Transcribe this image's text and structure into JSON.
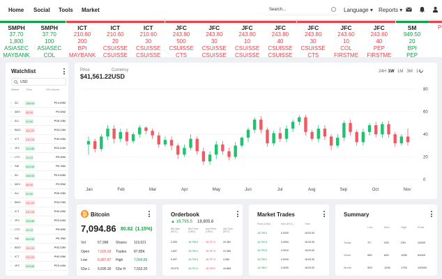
{
  "nav": {
    "links": [
      "Home",
      "Social",
      "Tools",
      "Market"
    ],
    "search": "Search...",
    "language": "Language",
    "reports": "Reports"
  },
  "ticker": [
    {
      "sym": "SMPH",
      "price": "37.70",
      "vol": "1,800",
      "broker": "ASIASEC",
      "name": "MAYBANK",
      "color": "#14a04a"
    },
    {
      "sym": "SMPH",
      "price": "37.70",
      "vol": "100",
      "broker": "ASIASEC",
      "name": "COL",
      "color": "#14a04a"
    },
    {
      "sym": "ICT",
      "price": "210.60",
      "vol": "200",
      "broker": "BPI",
      "name": "MAYBANK",
      "color": "#e8424a"
    },
    {
      "sym": "ICT",
      "price": "210.60",
      "vol": "20",
      "broker": "CSUISSE",
      "name": "CSUISSE",
      "color": "#e8424a"
    },
    {
      "sym": "ICT",
      "price": "210.60",
      "vol": "30",
      "broker": "CSUISSE",
      "name": "CSUISSE",
      "color": "#e8424a"
    },
    {
      "sym": "JFC",
      "price": "243.80",
      "vol": "500",
      "broker": "CSUISSE",
      "name": "CTS",
      "color": "#e8424a"
    },
    {
      "sym": "JFC",
      "price": "243.80",
      "vol": "30",
      "broker": "CSUISSE",
      "name": "CSUISSE",
      "color": "#e8424a"
    },
    {
      "sym": "JFC",
      "price": "243.80",
      "vol": "10",
      "broker": "CSUISSE",
      "name": "CSUISSE",
      "color": "#e8424a"
    },
    {
      "sym": "JFC",
      "price": "243.80",
      "vol": "40",
      "broker": "CSUISSE",
      "name": "CSUISSE",
      "color": "#e8424a"
    },
    {
      "sym": "JFC",
      "price": "243.80",
      "vol": "30",
      "broker": "CSUISSE",
      "name": "CTS",
      "color": "#e8424a"
    },
    {
      "sym": "JFC",
      "price": "243.60",
      "vol": "10",
      "broker": "COL",
      "name": "FIRSTME",
      "color": "#e8424a"
    },
    {
      "sym": "JFC",
      "price": "243.60",
      "vol": "40",
      "broker": "PEP",
      "name": "FIRSTME",
      "color": "#e8424a"
    },
    {
      "sym": "SM",
      "price": "949.50",
      "vol": "20",
      "broker": "BPI",
      "name": "PEP",
      "color": "#14a04a"
    },
    {
      "sym": "",
      "price": "",
      "vol": "",
      "broker": "",
      "name": "PHLS",
      "color": "#e8424a"
    }
  ],
  "watchlist": {
    "title": "Watchlist",
    "search": "USD",
    "cols": [
      "Market",
      "Price",
      "24h Volume"
    ],
    "rows": [
      {
        "sym": "AC",
        "price": "158.00",
        "vol": "₱14.83M",
        "up": true
      },
      {
        "sym": "AEV",
        "price": "38.90",
        "vol": "₱3.05M",
        "up": false
      },
      {
        "sym": "ALI",
        "price": "32.80",
        "vol": "₱28.33M",
        "up": true
      },
      {
        "sym": "BDO",
        "price": "112.20",
        "vol": "₱33.23M",
        "up": false
      },
      {
        "sym": "ICT",
        "price": "210.20",
        "vol": "₱40.45M",
        "up": false
      },
      {
        "sym": "JFC",
        "price": "243.80",
        "vol": "₱23.44M",
        "up": true
      },
      {
        "sym": "LTG",
        "price": "10.10",
        "vol": "₱5.05M",
        "up": true
      },
      {
        "sym": "SM",
        "price": "949.50",
        "vol": "₱5.78M",
        "up": true
      },
      {
        "sym": "AC",
        "price": "158.00",
        "vol": "₱14.83M",
        "up": true
      },
      {
        "sym": "AEV",
        "price": "38.90",
        "vol": "₱3.05M",
        "up": false
      },
      {
        "sym": "ALI",
        "price": "32.80",
        "vol": "₱28.33M",
        "up": true
      },
      {
        "sym": "BDO",
        "price": "112.20",
        "vol": "₱33.23M",
        "up": false
      },
      {
        "sym": "ICT",
        "price": "210.20",
        "vol": "₱40.45M",
        "up": false
      },
      {
        "sym": "JFC",
        "price": "243.80",
        "vol": "₱23.44M",
        "up": true
      },
      {
        "sym": "LTG",
        "price": "10.10",
        "vol": "₱5.05M",
        "up": true
      },
      {
        "sym": "SM",
        "price": "949.50",
        "vol": "₱5.78M",
        "up": true
      },
      {
        "sym": "BDO",
        "price": "112.20",
        "vol": "₱33.23M",
        "up": false
      },
      {
        "sym": "ICT",
        "price": "210.20",
        "vol": "₱40.45M",
        "up": false
      },
      {
        "sym": "JFC",
        "price": "243.80",
        "vol": "₱23.44M",
        "up": true
      }
    ]
  },
  "chart": {
    "price_label": "Price",
    "price": "$41,561.22",
    "currency_label": "Currency",
    "currency": "USD",
    "timeframes": [
      "24H",
      "1W",
      "1M",
      "3M",
      "1Y"
    ],
    "active_tf": "1W"
  },
  "chart_data": {
    "type": "candlestick",
    "months": [
      "Jan",
      "Feb",
      "Mar",
      "Apr",
      "May",
      "Jun",
      "Jul",
      "Aug",
      "Sep",
      "Oct",
      "Nov"
    ],
    "ylim": [
      0,
      80
    ],
    "yticks": [
      0,
      20,
      40,
      60,
      80
    ],
    "candles": [
      [
        31,
        34,
        22,
        38
      ],
      [
        34,
        27,
        24,
        36
      ],
      [
        27,
        38,
        25,
        40
      ],
      [
        38,
        45,
        35,
        48
      ],
      [
        45,
        36,
        32,
        48
      ],
      [
        36,
        42,
        33,
        45
      ],
      [
        42,
        34,
        30,
        45
      ],
      [
        34,
        40,
        32,
        42
      ],
      [
        40,
        46,
        37,
        48
      ],
      [
        46,
        43,
        40,
        47
      ],
      [
        43,
        39,
        36,
        45
      ],
      [
        39,
        31,
        28,
        42
      ],
      [
        31,
        35,
        29,
        38
      ],
      [
        35,
        30,
        26,
        38
      ],
      [
        30,
        22,
        18,
        32
      ],
      [
        22,
        28,
        20,
        31
      ],
      [
        28,
        36,
        26,
        40
      ],
      [
        36,
        25,
        22,
        38
      ],
      [
        25,
        16,
        13,
        28
      ],
      [
        16,
        22,
        13,
        25
      ],
      [
        22,
        31,
        18,
        34
      ],
      [
        31,
        25,
        22,
        34
      ],
      [
        25,
        20,
        17,
        28
      ],
      [
        20,
        30,
        18,
        33
      ],
      [
        30,
        37,
        28,
        38
      ],
      [
        37,
        44,
        33,
        46
      ],
      [
        44,
        53,
        41,
        55
      ],
      [
        53,
        44,
        41,
        56
      ],
      [
        44,
        32,
        29,
        46
      ],
      [
        32,
        41,
        30,
        43
      ],
      [
        41,
        36,
        33,
        46
      ],
      [
        36,
        45,
        33,
        48
      ],
      [
        45,
        51,
        42,
        53
      ],
      [
        51,
        55,
        48,
        57
      ],
      [
        55,
        42,
        39,
        57
      ],
      [
        42,
        36,
        34,
        44
      ],
      [
        36,
        45,
        33,
        48
      ],
      [
        45,
        38,
        35,
        48
      ],
      [
        38,
        30,
        26,
        40
      ],
      [
        30,
        37,
        28,
        40
      ],
      [
        37,
        50,
        34,
        52
      ],
      [
        50,
        42,
        39,
        53
      ],
      [
        42,
        33,
        30,
        44
      ],
      [
        33,
        42,
        30,
        45
      ],
      [
        42,
        48,
        39,
        50
      ],
      [
        48,
        40,
        37,
        51
      ],
      [
        40,
        49,
        37,
        51
      ],
      [
        49,
        40,
        37,
        52
      ],
      [
        40,
        32,
        29,
        42
      ],
      [
        32,
        38,
        30,
        40
      ],
      [
        38,
        33,
        30,
        45
      ]
    ]
  },
  "bitcoin": {
    "title": "Bitcoin",
    "price": "7,094.86",
    "change": "80.82",
    "pct": "(1.15%)",
    "rows": [
      [
        "Vol",
        "67,998",
        "Shares",
        "119,621"
      ],
      [
        "Open",
        "7,026.03",
        "Trades",
        "87.85K"
      ],
      [
        "Low",
        "6,987.87",
        "High",
        "7,094.86"
      ],
      [
        "52w L",
        "5,695.30",
        "52w H",
        "7,552.20"
      ]
    ]
  },
  "orderbook": {
    "title": "Orderbook",
    "price": "18,795.5",
    "other": "18,805.6",
    "cols": [
      "Bid Size (BTC)",
      "Bid Price (USD)",
      "Ask Price (USD)",
      "Ask Size (BTC)"
    ],
    "rows": [
      [
        "2,305",
        "18,795.5",
        "18,797.0",
        "20,382"
      ],
      [
        "1,607",
        "18,795.0",
        "18,797.5",
        "21,365"
      ],
      [
        "5,497",
        "18,793.5",
        "18,797.5",
        "4,365"
      ],
      [
        "29,075",
        "18,791.0",
        "18,799.0",
        "44,865"
      ]
    ]
  },
  "trades": {
    "title": "Market Trades",
    "cols": [
      "Price (USD)",
      "Size (BTC)",
      "Time"
    ],
    "rows": [
      [
        "18,795.0",
        "0.0030",
        "16:03:30"
      ],
      [
        "18,794.5",
        "0.0050",
        "16:03:30"
      ],
      [
        "18,793.5",
        "0.0010",
        "16:03:30"
      ],
      [
        "18,795.0",
        "0.0040",
        "16:03:30"
      ],
      [
        "18,788.0",
        "0.0030",
        "16:03:30"
      ]
    ]
  },
  "summary": {
    "title": "Summary",
    "cols": [
      "Low",
      "Med",
      "High",
      "Extra"
    ],
    "rows": [
      [
        "Today",
        "70",
        "200",
        "230",
        "10000"
      ],
      [
        "Week",
        "550",
        "600",
        "1050",
        "50000"
      ],
      [
        "Month",
        "900",
        "1200",
        "1700",
        "100000"
      ]
    ]
  }
}
